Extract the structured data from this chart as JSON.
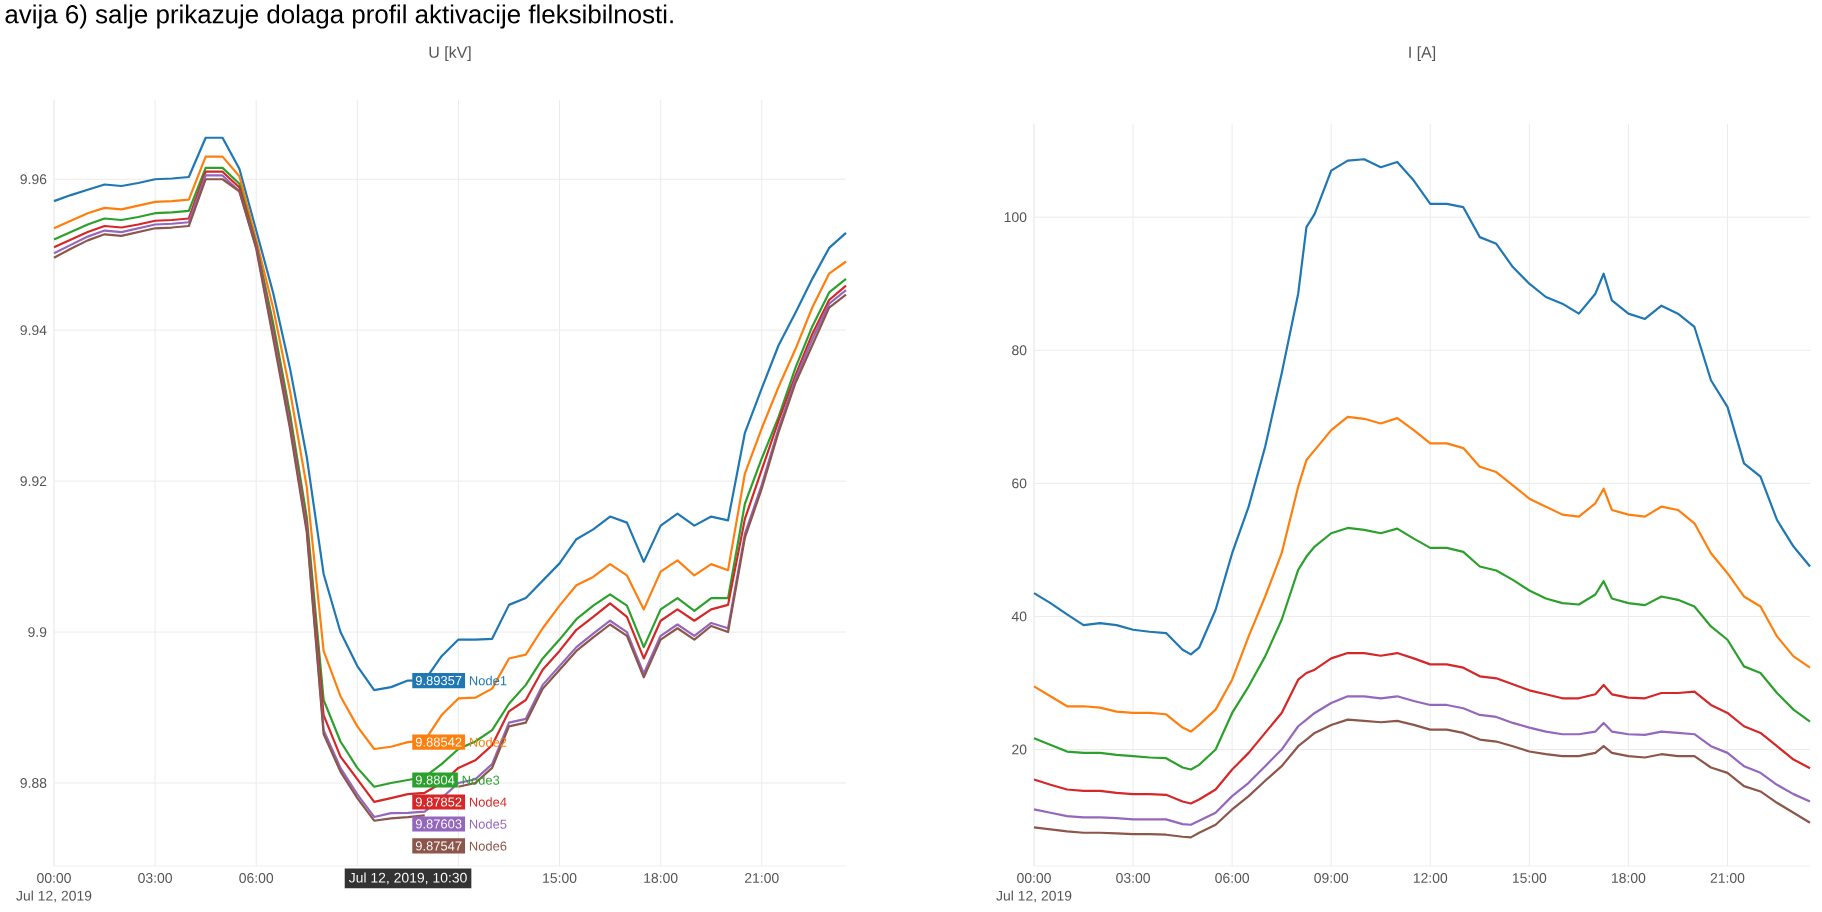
{
  "chart_data": [
    {
      "type": "line",
      "title": "U [kV]",
      "annotations": [
        "avija 6) salje prikazuje dolaga profil aktivacije fleksibilnosti.",
        "Jul 12, 2019",
        "Jul 12, 2019, 10:30"
      ],
      "legend": "bottom",
      "x": [
        0,
        0.5,
        1,
        1.5,
        2,
        2.5,
        3,
        3.5,
        4,
        4.5,
        5,
        5.5,
        6,
        6.5,
        7,
        7.5,
        8,
        8.5,
        9,
        9.5,
        10,
        10.5,
        11,
        11.5,
        12,
        12.5,
        13,
        13.5,
        14,
        14.5,
        15,
        15.5,
        16,
        16.5,
        17,
        17.5,
        18,
        18.5,
        19,
        19.5,
        20,
        20.5,
        21,
        21.5,
        22,
        22.5,
        23,
        23.5
      ],
      "series": [
        {
          "name": "Node1",
          "color": "#1f77b4",
          "values": [
            9.9571,
            9.9579,
            9.9586,
            9.9593,
            9.9591,
            9.9595,
            9.96,
            9.9601,
            9.9603,
            9.9655,
            9.9655,
            9.9614,
            9.9532,
            9.945,
            9.935,
            9.9232,
            9.9077,
            9.9,
            9.8955,
            9.8923,
            9.8927,
            9.89357,
            9.8936,
            9.8968,
            9.899,
            9.899,
            9.8991,
            9.9036,
            9.9045,
            9.9068,
            9.9091,
            9.9123,
            9.9136,
            9.9153,
            9.9145,
            9.9093,
            9.9141,
            9.9157,
            9.9141,
            9.9153,
            9.9148,
            9.9264,
            9.9323,
            9.938,
            9.9423,
            9.9468,
            9.9509,
            9.9529
          ],
          "value_labels": [
            null,
            null,
            null,
            null,
            null,
            null,
            null,
            null,
            null,
            null,
            null,
            null,
            null,
            null,
            null,
            null,
            null,
            null,
            null,
            null,
            null,
            "9.89357",
            null,
            null,
            null,
            null,
            null,
            null,
            null,
            null,
            null,
            null,
            null,
            null,
            null,
            null,
            null,
            null,
            null,
            null,
            null,
            null,
            null,
            null,
            null,
            null,
            null,
            null
          ]
        },
        {
          "name": "Node2",
          "color": "#ff7f0e",
          "values": [
            9.9535,
            9.9545,
            9.9555,
            9.9562,
            9.956,
            9.9565,
            9.957,
            9.9571,
            9.9573,
            9.963,
            9.963,
            9.9604,
            9.952,
            9.943,
            9.932,
            9.9192,
            9.8975,
            9.8915,
            9.8875,
            9.8845,
            9.8848,
            9.88542,
            9.8856,
            9.889,
            9.8912,
            9.8913,
            9.8925,
            9.8965,
            9.897,
            9.9005,
            9.9035,
            9.9062,
            9.9073,
            9.909,
            9.9075,
            9.903,
            9.908,
            9.9095,
            9.9075,
            9.909,
            9.9082,
            9.921,
            9.927,
            9.9325,
            9.9375,
            9.943,
            9.9475,
            9.9491
          ],
          "value_labels": [
            null,
            null,
            null,
            null,
            null,
            null,
            null,
            null,
            null,
            null,
            null,
            null,
            null,
            null,
            null,
            null,
            null,
            null,
            null,
            null,
            null,
            "9.88542",
            null,
            null,
            null,
            null,
            null,
            null,
            null,
            null,
            null,
            null,
            null,
            null,
            null,
            null,
            null,
            null,
            null,
            null,
            null,
            null,
            null,
            null,
            null,
            null,
            null,
            null
          ]
        },
        {
          "name": "Node3",
          "color": "#2ca02c",
          "values": [
            9.952,
            9.953,
            9.954,
            9.9548,
            9.9546,
            9.955,
            9.9555,
            9.9556,
            9.9558,
            9.9615,
            9.9615,
            9.9594,
            9.9514,
            9.941,
            9.929,
            9.9152,
            9.891,
            9.8855,
            9.882,
            9.8795,
            9.88,
            9.8804,
            9.8808,
            9.8825,
            9.8845,
            9.8855,
            9.887,
            9.8905,
            9.893,
            9.8965,
            9.899,
            9.9017,
            9.9035,
            9.905,
            9.9035,
            9.898,
            9.903,
            9.9045,
            9.9028,
            9.9045,
            9.9045,
            9.917,
            9.923,
            9.9285,
            9.935,
            9.9405,
            9.945,
            9.9468
          ],
          "value_labels": [
            null,
            null,
            null,
            null,
            null,
            null,
            null,
            null,
            null,
            null,
            null,
            null,
            null,
            null,
            null,
            null,
            null,
            null,
            null,
            null,
            null,
            "9.8804",
            null,
            null,
            null,
            null,
            null,
            null,
            null,
            null,
            null,
            null,
            null,
            null,
            null,
            null,
            null,
            null,
            null,
            null,
            null,
            null,
            null,
            null,
            null,
            null,
            null,
            null
          ]
        },
        {
          "name": "Node4",
          "color": "#d62728",
          "values": [
            9.951,
            9.952,
            9.953,
            9.9538,
            9.9536,
            9.954,
            9.9545,
            9.9546,
            9.9548,
            9.961,
            9.961,
            9.9589,
            9.9512,
            9.94,
            9.928,
            9.9142,
            9.889,
            9.8835,
            9.8805,
            9.8775,
            9.878,
            9.87852,
            9.8787,
            9.88,
            9.882,
            9.883,
            9.885,
            9.8895,
            9.891,
            9.895,
            9.8975,
            9.9003,
            9.902,
            9.9038,
            9.902,
            9.8965,
            9.9015,
            9.903,
            9.9015,
            9.903,
            9.9036,
            9.915,
            9.9215,
            9.928,
            9.934,
            9.9395,
            9.944,
            9.9459
          ],
          "value_labels": [
            null,
            null,
            null,
            null,
            null,
            null,
            null,
            null,
            null,
            null,
            null,
            null,
            null,
            null,
            null,
            null,
            null,
            null,
            null,
            null,
            null,
            "9.87852",
            null,
            null,
            null,
            null,
            null,
            null,
            null,
            null,
            null,
            null,
            null,
            null,
            null,
            null,
            null,
            null,
            null,
            null,
            null,
            null,
            null,
            null,
            null,
            null,
            null,
            null
          ]
        },
        {
          "name": "Node5",
          "color": "#9467bd",
          "values": [
            9.9502,
            9.9513,
            9.9524,
            9.9532,
            9.953,
            9.9535,
            9.954,
            9.9541,
            9.9543,
            9.9605,
            9.9605,
            9.9584,
            9.951,
            9.9395,
            9.9275,
            9.9137,
            9.887,
            9.882,
            9.8785,
            9.8755,
            9.876,
            9.87603,
            9.8762,
            9.878,
            9.88,
            9.8805,
            9.8825,
            9.888,
            9.8885,
            9.893,
            9.8955,
            9.898,
            9.8998,
            9.9015,
            9.9,
            9.8945,
            9.8995,
            9.901,
            9.8995,
            9.9012,
            9.9005,
            9.913,
            9.9195,
            9.927,
            9.9335,
            9.9388,
            9.9435,
            9.9453
          ],
          "value_labels": [
            null,
            null,
            null,
            null,
            null,
            null,
            null,
            null,
            null,
            null,
            null,
            null,
            null,
            null,
            null,
            null,
            null,
            null,
            null,
            null,
            null,
            "9.87603",
            null,
            null,
            null,
            null,
            null,
            null,
            null,
            null,
            null,
            null,
            null,
            null,
            null,
            null,
            null,
            null,
            null,
            null,
            null,
            null,
            null,
            null,
            null,
            null,
            null,
            null
          ]
        },
        {
          "name": "Node6",
          "color": "#8c564b",
          "values": [
            9.9496,
            9.9508,
            9.9519,
            9.9527,
            9.9525,
            9.953,
            9.9535,
            9.9536,
            9.9538,
            9.96,
            9.96,
            9.9584,
            9.9508,
            9.939,
            9.927,
            9.9132,
            9.8865,
            9.8815,
            9.878,
            9.875,
            9.8753,
            9.87547,
            9.8757,
            null,
            9.8795,
            9.88,
            9.882,
            9.8875,
            9.888,
            9.8925,
            9.895,
            9.8975,
            9.8993,
            9.901,
            9.8995,
            9.894,
            9.899,
            9.9005,
            9.899,
            9.9008,
            9.9,
            9.9125,
            9.919,
            9.9265,
            9.933,
            9.938,
            9.943,
            9.9447
          ],
          "value_labels": [
            null,
            null,
            null,
            null,
            null,
            null,
            null,
            null,
            null,
            null,
            null,
            null,
            null,
            null,
            null,
            null,
            null,
            null,
            null,
            null,
            null,
            "9.87547",
            null,
            null,
            null,
            null,
            null,
            null,
            null,
            null,
            null,
            null,
            null,
            null,
            null,
            null,
            null,
            null,
            null,
            null,
            null,
            null,
            null,
            null,
            null,
            null,
            null,
            null
          ]
        }
      ],
      "xlim": [
        0,
        23.5
      ],
      "ylim": [
        9.869,
        9.9705
      ],
      "xticks": [
        {
          "value": 0,
          "label": "00:00"
        },
        {
          "value": 3,
          "label": "03:00"
        },
        {
          "value": 6,
          "label": "06:00"
        },
        {
          "value": 9,
          "label": null
        },
        {
          "value": 12,
          "label": null
        },
        {
          "value": 15,
          "label": "15:00"
        },
        {
          "value": 18,
          "label": "18:00"
        },
        {
          "value": 21,
          "label": "21:00"
        }
      ],
      "yticks": [
        9.88,
        9.9,
        9.92,
        9.94,
        9.96
      ],
      "grid": true
    },
    {
      "type": "line",
      "title": "I [A]",
      "annotations": [
        "Jul 12, 2019"
      ],
      "x": [
        0,
        0.5,
        1,
        1.5,
        2,
        2.5,
        3,
        3.5,
        4,
        4.5,
        4.75,
        5,
        5.5,
        6,
        6.5,
        7,
        7.5,
        8,
        8.25,
        8.5,
        9,
        9.5,
        10,
        10.5,
        11,
        11.5,
        12,
        12.5,
        13,
        13.5,
        14,
        14.5,
        15,
        15.5,
        16,
        16.5,
        17,
        17.25,
        17.5,
        18,
        18.5,
        19,
        19.5,
        20,
        20.5,
        21,
        21.5,
        22,
        22.5,
        23,
        23.5
      ],
      "series": [
        {
          "color": "#1f77b4",
          "values": [
            43.5,
            42,
            40.3,
            38.7,
            39,
            38.7,
            38,
            37.7,
            37.5,
            35,
            34.3,
            35.3,
            41,
            49.5,
            56.5,
            65.5,
            76.5,
            88.5,
            98.5,
            100.5,
            107,
            108.5,
            108.7,
            107.5,
            108.3,
            105.5,
            102,
            102,
            101.5,
            97,
            96,
            92.5,
            90,
            88,
            87,
            85.5,
            88.5,
            91.5,
            87.5,
            85.5,
            84.7,
            86.7,
            85.5,
            83.5,
            75.5,
            71.5,
            63,
            61,
            54.5,
            50.5,
            47.5
          ]
        },
        {
          "color": "#ff7f0e",
          "values": [
            29.5,
            28,
            26.5,
            26.5,
            26.3,
            25.7,
            25.5,
            25.5,
            25.3,
            23.3,
            22.7,
            23.7,
            26,
            30.5,
            37,
            43,
            49.5,
            59.5,
            63.5,
            65,
            68,
            70,
            69.7,
            69,
            69.8,
            68,
            66,
            66,
            65.3,
            62.5,
            61.7,
            59.7,
            57.7,
            56.5,
            55.3,
            55,
            57,
            59.2,
            56,
            55.3,
            55,
            56.5,
            56,
            54,
            49.5,
            46.5,
            43,
            41.5,
            37,
            34,
            32.3
          ]
        },
        {
          "color": "#2ca02c",
          "values": [
            21.7,
            20.7,
            19.7,
            19.5,
            19.5,
            19.2,
            19,
            18.8,
            18.7,
            17.3,
            17,
            17.7,
            20,
            25.5,
            29.5,
            34,
            39.5,
            47,
            49,
            50.5,
            52.5,
            53.3,
            53,
            52.5,
            53.2,
            51.7,
            50.3,
            50.3,
            49.7,
            47.5,
            46.9,
            45.5,
            43.9,
            42.7,
            42,
            41.8,
            43.3,
            45.3,
            42.7,
            42,
            41.7,
            43,
            42.5,
            41.5,
            38.5,
            36.5,
            32.5,
            31.5,
            28.5,
            26,
            24.2
          ]
        },
        {
          "color": "#d62728",
          "values": [
            15.5,
            14.7,
            14,
            13.8,
            13.8,
            13.5,
            13.3,
            13.3,
            13.2,
            12.2,
            11.9,
            12.5,
            14,
            17,
            19.5,
            22.5,
            25.5,
            30.5,
            31.5,
            32,
            33.7,
            34.5,
            34.5,
            34.1,
            34.5,
            33.7,
            32.8,
            32.8,
            32.3,
            31,
            30.7,
            29.8,
            28.9,
            28.3,
            27.7,
            27.7,
            28.3,
            29.7,
            28.3,
            27.8,
            27.7,
            28.5,
            28.5,
            28.7,
            26.7,
            25.5,
            23.5,
            22.5,
            20.5,
            18.5,
            17.2
          ]
        },
        {
          "color": "#9467bd",
          "values": [
            11,
            10.5,
            10,
            9.8,
            9.8,
            9.7,
            9.5,
            9.5,
            9.5,
            8.8,
            8.7,
            9.3,
            10.5,
            13,
            15,
            17.5,
            20,
            23.5,
            24.5,
            25.5,
            27,
            28,
            28,
            27.7,
            28,
            27.3,
            26.7,
            26.7,
            26.2,
            25.2,
            24.9,
            24,
            23.3,
            22.7,
            22.3,
            22.3,
            22.7,
            24,
            22.7,
            22.3,
            22.2,
            22.7,
            22.5,
            22.3,
            20.5,
            19.5,
            17.5,
            16.5,
            14.7,
            13.3,
            12.2
          ]
        },
        {
          "color": "#8c564b",
          "values": [
            8.3,
            8,
            7.7,
            7.5,
            7.5,
            7.4,
            7.3,
            7.3,
            7.2,
            6.9,
            6.8,
            7.5,
            8.7,
            11,
            13,
            15.3,
            17.5,
            20.5,
            21.5,
            22.5,
            23.7,
            24.5,
            24.3,
            24.1,
            24.3,
            23.7,
            23,
            23,
            22.5,
            21.5,
            21.2,
            20.5,
            19.7,
            19.3,
            19,
            19,
            19.5,
            20.5,
            19.5,
            19,
            18.8,
            19.3,
            19,
            19,
            17.3,
            16.5,
            14.5,
            13.7,
            12,
            10.5,
            9
          ]
        }
      ],
      "xlim": [
        0,
        23.5
      ],
      "ylim": [
        2.5,
        114
      ],
      "xticks": [
        {
          "value": 0,
          "label": "00:00"
        },
        {
          "value": 3,
          "label": "03:00"
        },
        {
          "value": 6,
          "label": "06:00"
        },
        {
          "value": 9,
          "label": "09:00"
        },
        {
          "value": 12,
          "label": "12:00"
        },
        {
          "value": 15,
          "label": "15:00"
        },
        {
          "value": 18,
          "label": "18:00"
        },
        {
          "value": 21,
          "label": "21:00"
        }
      ],
      "yticks": [
        20,
        40,
        60,
        80,
        100
      ],
      "grid": true
    }
  ]
}
